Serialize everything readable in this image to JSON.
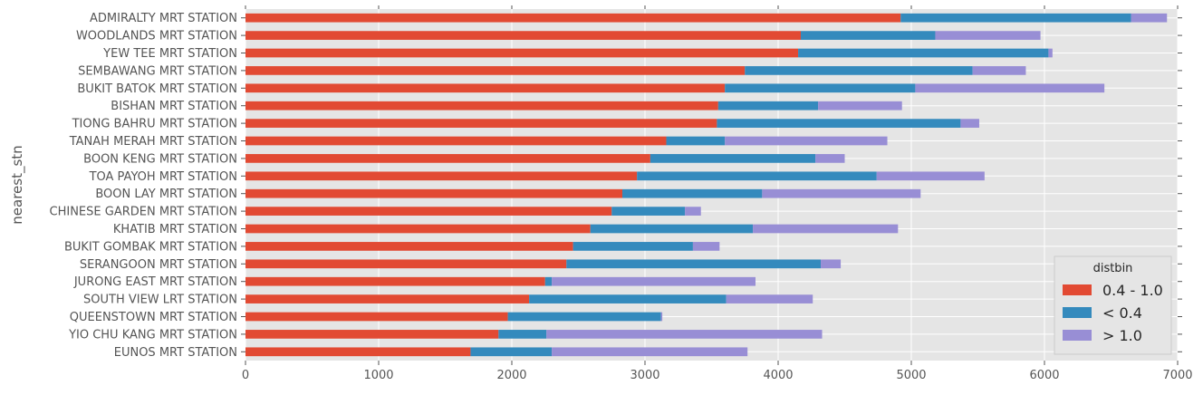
{
  "chart_data": {
    "type": "bar",
    "orientation": "horizontal",
    "stacked": true,
    "ylabel": "nearest_stn",
    "xlabel": "",
    "xlim": [
      0,
      7000
    ],
    "xticks": [
      "0",
      "1000",
      "2000",
      "3000",
      "4000",
      "5000",
      "6000",
      "7000"
    ],
    "grid": true,
    "legend": {
      "title": "distbin",
      "placement": "bottom-right"
    },
    "categories": [
      "ADMIRALTY MRT STATION",
      "WOODLANDS MRT STATION",
      "YEW TEE MRT STATION",
      "SEMBAWANG MRT STATION",
      "BUKIT BATOK MRT STATION",
      "BISHAN MRT STATION",
      "TIONG BAHRU MRT STATION",
      "TANAH MERAH MRT STATION",
      "BOON KENG MRT STATION",
      "TOA PAYOH MRT STATION",
      "BOON LAY MRT STATION",
      "CHINESE GARDEN MRT STATION",
      "KHATIB MRT STATION",
      "BUKIT GOMBAK MRT STATION",
      "SERANGOON MRT STATION",
      "JURONG EAST MRT STATION",
      "SOUTH VIEW LRT STATION",
      "QUEENSTOWN MRT STATION",
      "YIO CHU KANG MRT STATION",
      "EUNOS MRT STATION"
    ],
    "series": [
      {
        "name": "0.4 - 1.0",
        "color": "#e24a33",
        "values": [
          4920,
          4170,
          4150,
          3750,
          3600,
          3550,
          3540,
          3160,
          3040,
          2940,
          2830,
          2750,
          2590,
          2460,
          2410,
          2250,
          2130,
          1970,
          1900,
          1690
        ]
      },
      {
        "name": "< 0.4",
        "color": "#348abd",
        "values": [
          1730,
          1010,
          1880,
          1710,
          1430,
          750,
          1830,
          440,
          1240,
          1800,
          1050,
          550,
          1220,
          900,
          1910,
          50,
          1480,
          1150,
          360,
          610
        ]
      },
      {
        "name": "> 1.0",
        "color": "#988ed5",
        "values": [
          270,
          790,
          30,
          400,
          1420,
          630,
          140,
          1220,
          220,
          810,
          1190,
          120,
          1090,
          200,
          150,
          1530,
          650,
          10,
          2070,
          1470
        ]
      }
    ]
  }
}
